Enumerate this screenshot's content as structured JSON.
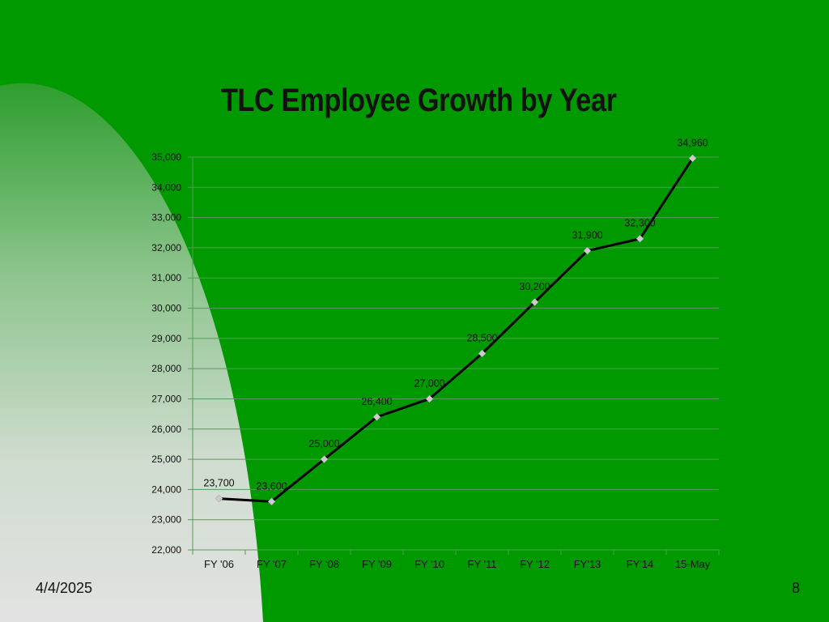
{
  "slide": {
    "date": "4/4/2025",
    "page_number": "8"
  },
  "colors": {
    "background": "#009900",
    "line": "#000000",
    "marker": "#cccccc",
    "grid": "#5a9a5a"
  },
  "chart_data": {
    "type": "line",
    "title": "TLC Employee Growth by Year",
    "xlabel": "",
    "ylabel": "",
    "categories": [
      "FY '06",
      "FY '07",
      "FY '08",
      "FY '09",
      "FY '10",
      "FY '11",
      "FY '12",
      "FY'13",
      "FY'14",
      "15-May"
    ],
    "values": [
      23700,
      23600,
      25000,
      26400,
      27000,
      28500,
      30200,
      31900,
      32300,
      34960
    ],
    "value_labels": [
      "23,700",
      "23,600",
      "25,000",
      "26,400",
      "27,000",
      "28,500",
      "30,200",
      "31,900",
      "32,300",
      "34,960"
    ],
    "ylim": [
      22000,
      35000
    ],
    "y_ticks": [
      "22,000",
      "23,000",
      "24,000",
      "25,000",
      "26,000",
      "27,000",
      "28,000",
      "29,000",
      "30,000",
      "31,000",
      "32,000",
      "33,000",
      "34,000",
      "35,000"
    ],
    "grid": true,
    "legend": "none"
  }
}
